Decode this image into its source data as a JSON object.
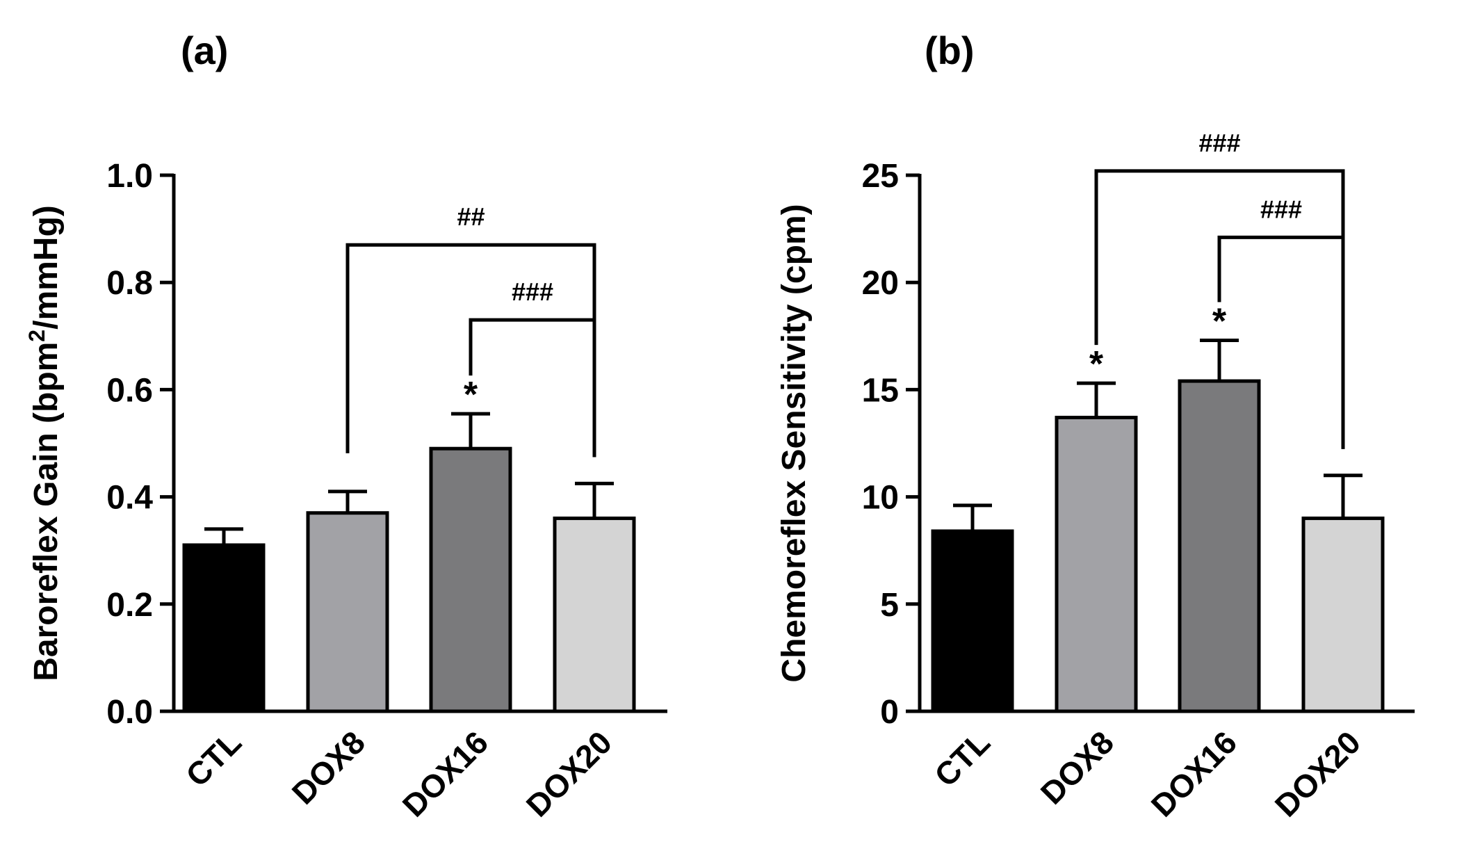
{
  "chart_data": [
    {
      "type": "bar",
      "panel_label": "(a)",
      "ylabel_prefix": "Baroreflex Gain (bpm",
      "ylabel_sup": "2",
      "ylabel_suffix": "/mmHg)",
      "categories": [
        "CTL",
        "DOX8",
        "DOX16",
        "DOX20"
      ],
      "values": [
        0.31,
        0.37,
        0.49,
        0.36
      ],
      "errors": [
        0.03,
        0.04,
        0.065,
        0.065
      ],
      "colors": [
        "#000000",
        "#a2a2a6",
        "#7a7a7c",
        "#d4d4d4"
      ],
      "ylim": [
        0,
        1.0
      ],
      "yticks": [
        0.0,
        0.2,
        0.4,
        0.6,
        0.8,
        1.0
      ],
      "ytick_labels": [
        "0.0",
        "0.2",
        "0.4",
        "0.6",
        "0.8",
        "1.0"
      ],
      "star_annotations": [
        {
          "index": 2,
          "text": "*"
        }
      ],
      "comparisons": [
        {
          "from": 1,
          "to": 3,
          "level": 0.87,
          "label": "##"
        },
        {
          "from": 2,
          "to": 3,
          "level": 0.73,
          "label": "###"
        }
      ]
    },
    {
      "type": "bar",
      "panel_label": "(b)",
      "ylabel_prefix": "Chemoreflex Sensitivity (cpm)",
      "ylabel_sup": "",
      "ylabel_suffix": "",
      "categories": [
        "CTL",
        "DOX8",
        "DOX16",
        "DOX20"
      ],
      "values": [
        8.4,
        13.7,
        15.4,
        9.0
      ],
      "errors": [
        1.2,
        1.6,
        1.9,
        2.0
      ],
      "colors": [
        "#000000",
        "#a2a2a6",
        "#7a7a7c",
        "#d4d4d4"
      ],
      "ylim": [
        0,
        25
      ],
      "yticks": [
        0,
        5,
        10,
        15,
        20,
        25
      ],
      "ytick_labels": [
        "0",
        "5",
        "10",
        "15",
        "20",
        "25"
      ],
      "star_annotations": [
        {
          "index": 1,
          "text": "*"
        },
        {
          "index": 2,
          "text": "*"
        }
      ],
      "comparisons": [
        {
          "from": 1,
          "to": 3,
          "level": 25.2,
          "label": "###"
        },
        {
          "from": 2,
          "to": 3,
          "level": 22.1,
          "label": "###"
        }
      ]
    }
  ]
}
